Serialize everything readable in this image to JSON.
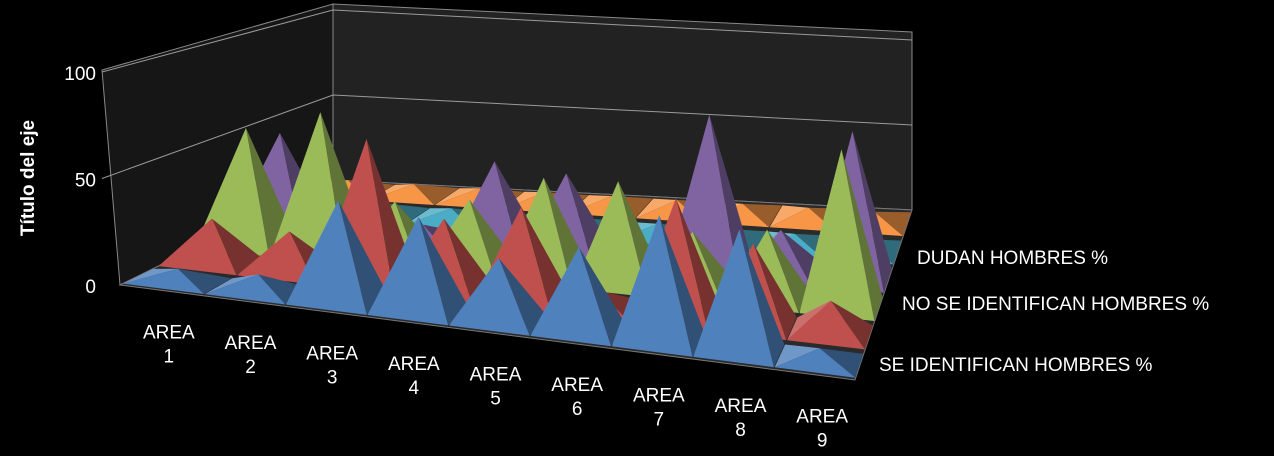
{
  "chart_data": {
    "type": "bar",
    "subtype": "3d-pyramid",
    "title": "",
    "ylabel": "Título del eje",
    "ylim": [
      0,
      100
    ],
    "yticks": [
      "0",
      "50",
      "100"
    ],
    "categories": [
      [
        "AREA",
        "1"
      ],
      [
        "AREA",
        "2"
      ],
      [
        "AREA",
        "3"
      ],
      [
        "AREA",
        "4"
      ],
      [
        "AREA",
        "5"
      ],
      [
        "AREA",
        "6"
      ],
      [
        "AREA",
        "7"
      ],
      [
        "AREA",
        "8"
      ],
      [
        "AREA",
        "9"
      ]
    ],
    "depth_labels": [
      "SE IDENTIFICAN HOMBRES %",
      "NO SE IDENTIFICAN HOMBRES %",
      "DUDAN HOMBRES %"
    ],
    "series": [
      {
        "color": "#4F81BD",
        "values": [
          6,
          8,
          48,
          45,
          30,
          40,
          60,
          58,
          6
        ]
      },
      {
        "color": "#C0504D",
        "values": [
          22,
          20,
          70,
          35,
          45,
          8,
          58,
          40,
          16
        ]
      },
      {
        "color": "#9BBB59",
        "values": [
          60,
          72,
          30,
          35,
          50,
          52,
          30,
          35,
          80
        ]
      },
      {
        "color": "#8064A2",
        "values": [
          50,
          8,
          8,
          45,
          42,
          8,
          80,
          22,
          78
        ]
      },
      {
        "color": "#4BACC6",
        "values": [
          6,
          6,
          6,
          6,
          6,
          6,
          6,
          6,
          6
        ]
      },
      {
        "color": "#F79646",
        "values": [
          6,
          6,
          6,
          6,
          6,
          6,
          6,
          6,
          6
        ]
      }
    ]
  }
}
